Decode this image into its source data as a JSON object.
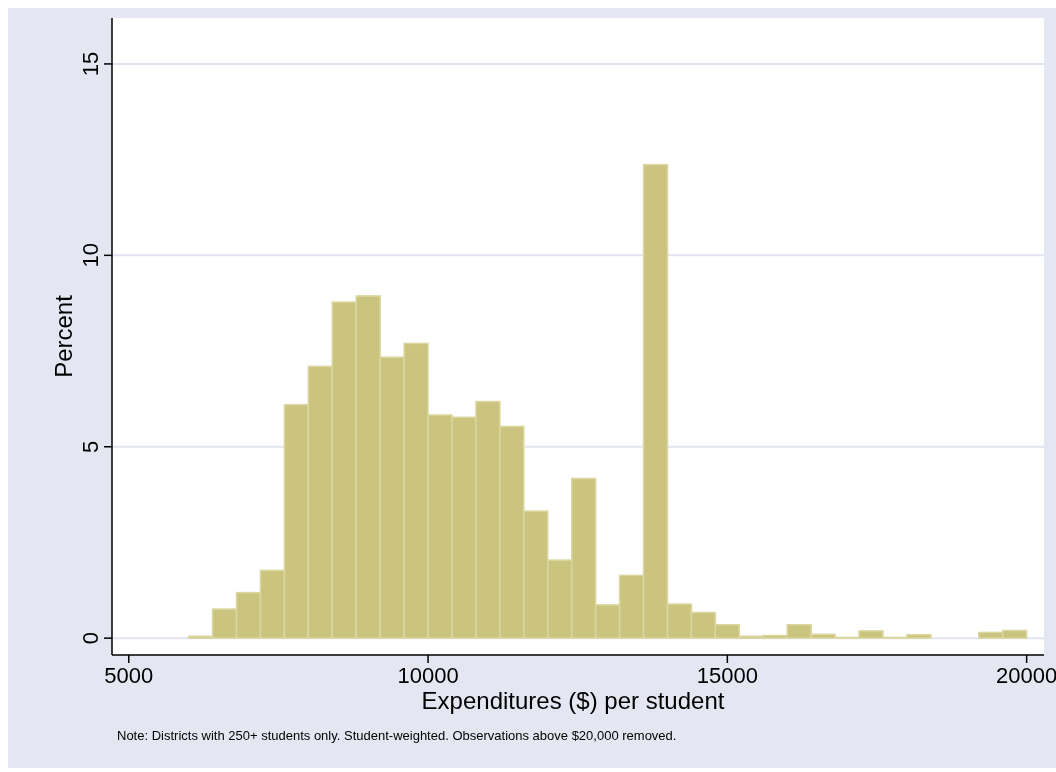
{
  "chart_data": {
    "type": "histogram",
    "xlabel": "Expenditures ($) per student",
    "ylabel": "Percent",
    "bins": [
      6000,
      6400,
      6800,
      7200,
      7600,
      8000,
      8400,
      8800,
      9200,
      9600,
      10000,
      10400,
      10800,
      11200,
      11600,
      12000,
      12400,
      12800,
      13200,
      13600,
      14000,
      14400,
      14800,
      15200,
      15600,
      16000,
      16400,
      16800,
      17200,
      17600,
      18000,
      18400,
      18800,
      19200,
      19600,
      20000
    ],
    "values": [
      0.05,
      0.76,
      1.19,
      1.77,
      6.1,
      7.1,
      8.78,
      8.94,
      7.34,
      7.7,
      5.83,
      5.77,
      6.18,
      5.53,
      3.32,
      2.04,
      4.17,
      0.87,
      1.64,
      12.37,
      0.89,
      0.67,
      0.35,
      0.05,
      0.07,
      0.35,
      0.1,
      0.02,
      0.19,
      0.02,
      0.09,
      0,
      0,
      0.15,
      0.2
    ],
    "color": "#cbc47e",
    "xlim": [
      4720,
      20290
    ],
    "xticks": [
      5000,
      10000,
      15000,
      20000
    ],
    "ylim": [
      -0.44,
      16.2
    ],
    "yticks": [
      0,
      5,
      10,
      15
    ],
    "grid": "y",
    "annotations": [
      "Note: Districts with 250+ students only. Student-weighted. Observations above $20,000 removed."
    ]
  }
}
